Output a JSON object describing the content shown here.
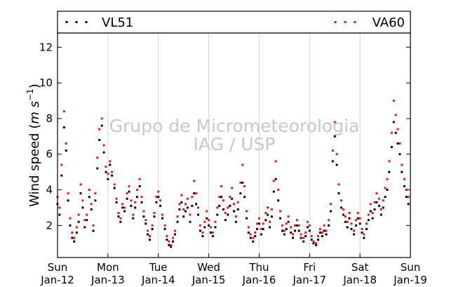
{
  "watermark": {
    "line1": "Grupo de Micrometeorologia",
    "line2": "IAG / USP"
  },
  "chart_data": {
    "type": "scatter",
    "title": "",
    "ylabel_main": "Wind speed (",
    "ylabel_unit": "m s",
    "ylabel_exp": "−1",
    "ylabel_close": ")",
    "xlabel": "",
    "ylim": [
      0.2,
      12.8
    ],
    "xlim": [
      0,
      7
    ],
    "y_ticks": [
      2,
      4,
      6,
      8,
      10,
      12
    ],
    "x_ticks": [
      {
        "x": 0,
        "day": "Sun",
        "date": "Jan-12"
      },
      {
        "x": 1,
        "day": "Mon",
        "date": "Jan-13"
      },
      {
        "x": 2,
        "day": "Tue",
        "date": "Jan-14"
      },
      {
        "x": 3,
        "day": "Wed",
        "date": "Jan-15"
      },
      {
        "x": 4,
        "day": "Thu",
        "date": "Jan-16"
      },
      {
        "x": 5,
        "day": "Fri",
        "date": "Jan-17"
      },
      {
        "x": 6,
        "day": "Sat",
        "date": "Jan-18"
      },
      {
        "x": 7,
        "day": "Sun",
        "date": "Jan-19"
      }
    ],
    "grid": {
      "x": true,
      "y": false
    },
    "legend": "top",
    "series": [
      {
        "name": "VL51",
        "color": "#000000",
        "x": [
          0.0,
          0.04,
          0.08,
          0.13,
          0.17,
          0.21,
          0.25,
          0.29,
          0.33,
          0.38,
          0.42,
          0.46,
          0.5,
          0.54,
          0.58,
          0.63,
          0.67,
          0.71,
          0.75,
          0.79,
          0.83,
          0.88,
          0.92,
          0.96,
          1.0,
          1.04,
          1.08,
          1.13,
          1.17,
          1.21,
          1.25,
          1.29,
          1.33,
          1.38,
          1.42,
          1.46,
          1.5,
          1.54,
          1.58,
          1.63,
          1.67,
          1.71,
          1.75,
          1.79,
          1.83,
          1.88,
          1.92,
          1.96,
          2.0,
          2.04,
          2.08,
          2.13,
          2.17,
          2.21,
          2.25,
          2.29,
          2.33,
          2.38,
          2.42,
          2.46,
          2.5,
          2.54,
          2.58,
          2.63,
          2.67,
          2.71,
          2.75,
          2.79,
          2.83,
          2.88,
          2.92,
          2.96,
          3.0,
          3.04,
          3.08,
          3.13,
          3.17,
          3.21,
          3.25,
          3.29,
          3.33,
          3.38,
          3.42,
          3.46,
          3.5,
          3.54,
          3.58,
          3.63,
          3.67,
          3.71,
          3.75,
          3.79,
          3.83,
          3.88,
          3.92,
          3.96,
          4.0,
          4.04,
          4.08,
          4.13,
          4.17,
          4.21,
          4.25,
          4.29,
          4.33,
          4.38,
          4.42,
          4.46,
          4.5,
          4.54,
          4.58,
          4.63,
          4.67,
          4.71,
          4.75,
          4.79,
          4.83,
          4.88,
          4.92,
          4.96,
          5.0,
          5.04,
          5.08,
          5.13,
          5.17,
          5.21,
          5.25,
          5.29,
          5.33,
          5.38,
          5.42,
          5.46,
          5.5,
          5.54,
          5.58,
          5.63,
          5.67,
          5.71,
          5.75,
          5.79,
          5.83,
          5.88,
          5.92,
          5.96,
          6.0,
          6.04,
          6.08,
          6.13,
          6.17,
          6.21,
          6.25,
          6.29,
          6.33,
          6.38,
          6.42,
          6.46,
          6.5,
          6.54,
          6.58,
          6.63,
          6.67,
          6.71,
          6.75,
          6.79,
          6.83,
          6.88,
          6.92,
          6.96
        ],
        "y": [
          3.2,
          2.6,
          4.8,
          7.5,
          6.2,
          3.4,
          2.0,
          1.3,
          1.1,
          1.6,
          2.2,
          3.8,
          3.0,
          1.9,
          2.3,
          3.6,
          2.9,
          1.7,
          3.4,
          5.2,
          6.8,
          7.6,
          6.1,
          5.0,
          4.6,
          5.4,
          4.8,
          4.1,
          3.3,
          2.5,
          2.2,
          3.0,
          2.8,
          3.5,
          3.9,
          3.1,
          2.4,
          3.0,
          3.6,
          4.2,
          3.3,
          2.5,
          2.1,
          1.5,
          1.2,
          1.8,
          2.5,
          3.3,
          3.6,
          3.1,
          2.4,
          1.8,
          1.2,
          0.9,
          0.8,
          1.1,
          1.5,
          2.2,
          2.9,
          3.3,
          2.5,
          2.8,
          3.0,
          2.2,
          3.1,
          3.8,
          3.2,
          2.6,
          1.7,
          1.4,
          1.9,
          2.4,
          2.0,
          1.6,
          1.4,
          1.9,
          2.6,
          3.1,
          3.6,
          2.9,
          2.3,
          2.6,
          3.1,
          3.5,
          2.8,
          2.2,
          2.9,
          3.8,
          4.4,
          3.6,
          2.4,
          1.6,
          1.3,
          1.1,
          1.4,
          1.8,
          2.1,
          1.5,
          1.8,
          2.3,
          2.6,
          1.9,
          2.5,
          3.9,
          4.6,
          3.4,
          2.4,
          1.7,
          1.5,
          1.8,
          2.2,
          1.6,
          1.3,
          1.7,
          2.0,
          1.7,
          1.3,
          1.1,
          1.4,
          1.9,
          1.7,
          1.2,
          1.0,
          0.9,
          1.2,
          1.6,
          1.4,
          1.7,
          1.5,
          2.0,
          2.8,
          5.6,
          7.0,
          5.4,
          3.8,
          3.0,
          2.6,
          2.2,
          1.9,
          2.4,
          1.8,
          1.5,
          2.0,
          2.4,
          2.1,
          1.6,
          1.3,
          1.8,
          2.3,
          2.8,
          2.4,
          2.9,
          3.3,
          3.1,
          2.6,
          3.0,
          3.6,
          4.0,
          5.0,
          6.4,
          7.8,
          7.2,
          6.6,
          6.0,
          5.0,
          4.2,
          3.6,
          3.2
        ]
      },
      {
        "name": "VA60",
        "color": "#e8191a",
        "x": [
          0.0,
          0.04,
          0.08,
          0.13,
          0.17,
          0.21,
          0.25,
          0.29,
          0.33,
          0.38,
          0.42,
          0.46,
          0.5,
          0.54,
          0.58,
          0.63,
          0.67,
          0.71,
          0.75,
          0.79,
          0.83,
          0.88,
          0.92,
          0.96,
          1.0,
          1.04,
          1.08,
          1.13,
          1.17,
          1.21,
          1.25,
          1.29,
          1.33,
          1.38,
          1.42,
          1.46,
          1.5,
          1.54,
          1.58,
          1.63,
          1.67,
          1.71,
          1.75,
          1.79,
          1.83,
          1.88,
          1.92,
          1.96,
          2.0,
          2.04,
          2.08,
          2.13,
          2.17,
          2.21,
          2.25,
          2.29,
          2.33,
          2.38,
          2.42,
          2.46,
          2.5,
          2.54,
          2.58,
          2.63,
          2.67,
          2.71,
          2.75,
          2.79,
          2.83,
          2.88,
          2.92,
          2.96,
          3.0,
          3.04,
          3.08,
          3.13,
          3.17,
          3.21,
          3.25,
          3.29,
          3.33,
          3.38,
          3.42,
          3.46,
          3.5,
          3.54,
          3.58,
          3.63,
          3.67,
          3.71,
          3.75,
          3.79,
          3.83,
          3.88,
          3.92,
          3.96,
          4.0,
          4.04,
          4.08,
          4.13,
          4.17,
          4.21,
          4.25,
          4.29,
          4.33,
          4.38,
          4.42,
          4.46,
          4.5,
          4.54,
          4.58,
          4.63,
          4.67,
          4.71,
          4.75,
          4.79,
          4.83,
          4.88,
          4.92,
          4.96,
          5.0,
          5.04,
          5.08,
          5.13,
          5.17,
          5.21,
          5.25,
          5.29,
          5.33,
          5.38,
          5.42,
          5.46,
          5.5,
          5.54,
          5.58,
          5.63,
          5.67,
          5.71,
          5.75,
          5.79,
          5.83,
          5.88,
          5.92,
          5.96,
          6.0,
          6.04,
          6.08,
          6.13,
          6.17,
          6.21,
          6.25,
          6.29,
          6.33,
          6.38,
          6.42,
          6.46,
          6.5,
          6.54,
          6.58,
          6.63,
          6.67,
          6.71,
          6.75,
          6.79,
          6.83,
          6.88,
          6.92,
          6.96
        ],
        "y": [
          3.6,
          3.0,
          5.4,
          8.4,
          6.6,
          3.8,
          2.4,
          1.6,
          1.3,
          1.9,
          2.6,
          4.3,
          3.4,
          2.3,
          2.6,
          4.0,
          3.2,
          2.0,
          3.8,
          5.8,
          7.4,
          8.0,
          6.5,
          5.3,
          4.9,
          5.6,
          5.0,
          4.3,
          3.5,
          2.7,
          2.4,
          3.2,
          3.0,
          3.8,
          4.2,
          3.4,
          2.6,
          3.3,
          4.0,
          4.6,
          3.6,
          2.8,
          2.3,
          1.7,
          1.4,
          2.0,
          2.7,
          3.6,
          3.9,
          3.4,
          2.6,
          2.0,
          1.4,
          1.1,
          0.9,
          1.3,
          1.7,
          2.5,
          3.2,
          3.7,
          2.9,
          3.2,
          3.5,
          2.6,
          3.6,
          4.5,
          3.8,
          3.0,
          2.0,
          1.6,
          2.2,
          2.8,
          2.3,
          1.9,
          1.6,
          2.2,
          3.0,
          3.6,
          4.2,
          3.4,
          2.7,
          3.0,
          3.6,
          4.1,
          3.2,
          2.5,
          3.3,
          4.4,
          5.4,
          4.2,
          2.8,
          1.9,
          1.5,
          1.3,
          1.6,
          2.1,
          2.4,
          1.8,
          2.1,
          2.7,
          3.0,
          2.2,
          2.9,
          4.5,
          5.6,
          4.0,
          2.8,
          2.0,
          1.7,
          2.1,
          2.5,
          1.9,
          1.5,
          2.0,
          2.3,
          2.0,
          1.5,
          1.3,
          1.6,
          2.2,
          2.0,
          1.4,
          1.1,
          1.0,
          1.4,
          1.8,
          1.6,
          2.0,
          1.7,
          2.3,
          3.2,
          6.2,
          7.8,
          6.0,
          4.3,
          3.4,
          2.9,
          2.5,
          2.2,
          2.7,
          2.1,
          1.7,
          2.3,
          2.7,
          2.4,
          1.8,
          1.5,
          2.1,
          2.6,
          3.2,
          2.7,
          3.3,
          3.8,
          3.5,
          2.9,
          3.4,
          4.1,
          4.6,
          5.6,
          7.2,
          9.0,
          8.2,
          7.4,
          6.6,
          5.4,
          4.6,
          4.0,
          3.6
        ]
      }
    ]
  }
}
